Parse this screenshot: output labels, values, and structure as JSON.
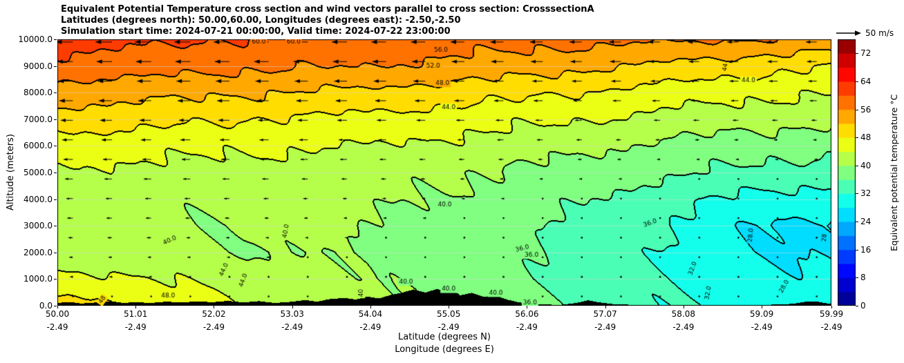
{
  "header": {
    "title_line1": "Equivalent Potential Temperature cross section and wind vectors parallel to cross section: CrosssectionA",
    "title_line2": "Latitudes (degrees north): 50.00,60.00, Longitudes (degrees east): -2.50,-2.50",
    "title_line3": "Simulation start time: 2024-07-21 00:00:00, Valid time: 2024-07-22 23:00:00"
  },
  "axes": {
    "x_label": "Latitude (degrees N)",
    "x_label_2": "Longitude (degrees E)",
    "y_label": "Altitude (meters)",
    "x_ticks": [
      {
        "lat": "50.00",
        "lon": "-2.49"
      },
      {
        "lat": "51.01",
        "lon": "-2.49"
      },
      {
        "lat": "52.02",
        "lon": "-2.49"
      },
      {
        "lat": "53.03",
        "lon": "-2.49"
      },
      {
        "lat": "54.04",
        "lon": "-2.49"
      },
      {
        "lat": "55.05",
        "lon": "-2.49"
      },
      {
        "lat": "56.06",
        "lon": "-2.49"
      },
      {
        "lat": "57.07",
        "lon": "-2.49"
      },
      {
        "lat": "58.08",
        "lon": "-2.49"
      },
      {
        "lat": "59.09",
        "lon": "-2.49"
      },
      {
        "lat": "59.99",
        "lon": "-2.49"
      }
    ],
    "y_ticks": [
      "0.0",
      "1000.0",
      "2000.0",
      "3000.0",
      "4000.0",
      "5000.0",
      "6000.0",
      "7000.0",
      "8000.0",
      "9000.0",
      "10000.0"
    ]
  },
  "colorbar": {
    "label": "Equivalent potential temperature °C",
    "ticks": [
      "0",
      "8",
      "16",
      "24",
      "32",
      "40",
      "48",
      "56",
      "64",
      "72"
    ],
    "vmin": 0,
    "vmax": 76,
    "band_step": 4,
    "colormap": "jet"
  },
  "wind_reference": {
    "label": "50 m/s",
    "speed_ms": 50
  },
  "chart_data": {
    "type": "heatmap",
    "title": "Equivalent Potential Temperature cross section and wind vectors parallel to cross section: CrosssectionA",
    "x": {
      "label": "Latitude (degrees N)",
      "values": [
        50,
        51,
        52,
        53,
        54,
        55,
        56,
        57,
        58,
        59,
        60
      ]
    },
    "y": {
      "label": "Altitude (meters)",
      "values": [
        0,
        1000,
        2000,
        3000,
        4000,
        5000,
        6000,
        7000,
        8000,
        9000,
        10000
      ]
    },
    "x_range": [
      50.0,
      59.99
    ],
    "y_range": [
      0,
      10000
    ],
    "field_name": "equivalent_potential_temperature_C",
    "vmin": 0,
    "vmax": 76,
    "grid": [
      [
        50,
        48,
        45,
        42,
        41,
        40,
        37,
        35,
        32,
        30,
        29
      ],
      [
        46,
        44,
        43,
        41,
        40,
        39,
        36,
        34,
        31.5,
        29,
        28.5
      ],
      [
        41,
        40.5,
        40.5,
        40,
        39.5,
        38,
        36.5,
        34,
        31,
        28,
        27.5
      ],
      [
        41,
        40.5,
        40,
        41,
        40,
        38.5,
        37,
        34.5,
        31.5,
        28,
        27
      ],
      [
        42,
        41.5,
        41,
        41.5,
        41,
        39.5,
        38,
        36,
        33,
        31,
        30
      ],
      [
        43.5,
        43,
        42.5,
        42,
        41.5,
        40.5,
        39.5,
        38,
        36.5,
        35,
        34
      ],
      [
        46,
        45.5,
        45,
        44.5,
        44,
        43,
        42,
        40.5,
        39,
        38,
        37
      ],
      [
        50,
        49.5,
        48.5,
        47.5,
        47,
        46,
        45,
        44,
        42.5,
        41.5,
        41
      ],
      [
        54,
        53.5,
        52.5,
        52,
        51,
        50,
        49,
        47.5,
        46,
        45,
        44
      ],
      [
        58.5,
        58,
        57,
        56.5,
        56,
        55,
        54,
        52.5,
        51,
        49.5,
        48
      ],
      [
        62,
        61,
        60,
        59.5,
        59,
        58,
        57.5,
        57,
        56.5,
        56,
        55
      ]
    ],
    "wind_parallel_ms": [
      [
        -2,
        -2,
        -1,
        -1,
        0,
        0,
        0,
        0,
        0,
        0,
        0
      ],
      [
        -6,
        -5,
        -4,
        -2,
        -1,
        0,
        0,
        0,
        0,
        0,
        1
      ],
      [
        -8,
        -8,
        -6,
        -4,
        -2,
        -1,
        0,
        0,
        0,
        0,
        1
      ],
      [
        -11,
        -11,
        -9,
        -7,
        -5,
        -3,
        -1,
        0,
        0,
        0,
        1
      ],
      [
        -14,
        -13,
        -12,
        -10,
        -8,
        -6,
        -4,
        -2,
        -1,
        -1,
        -1
      ],
      [
        -18,
        -17,
        -16,
        -14,
        -12,
        -10,
        -8,
        -6,
        -4,
        -3,
        -3
      ],
      [
        -22,
        -21,
        -20,
        -18,
        -16,
        -14,
        -12,
        -10,
        -8,
        -7,
        -6
      ],
      [
        -26,
        -25,
        -24,
        -22,
        -20,
        -18,
        -16,
        -14,
        -13,
        -12,
        -11
      ],
      [
        -30,
        -29,
        -28,
        -26,
        -25,
        -23,
        -21,
        -19,
        -18,
        -17,
        -16
      ],
      [
        -33,
        -32,
        -31,
        -30,
        -29,
        -27,
        -25,
        -23,
        -22,
        -21,
        -20
      ],
      [
        -36,
        -35,
        -34,
        -33,
        -32,
        -30,
        -28,
        -26,
        -25,
        -24,
        -23
      ]
    ],
    "contour_levels": [
      28,
      32,
      36,
      40,
      44,
      48,
      52,
      56,
      60
    ],
    "contour_labels": [
      {
        "text": "60.0",
        "lat": 52.6,
        "alt": 9900,
        "rot": 0
      },
      {
        "text": "60.0",
        "lat": 53.05,
        "alt": 9900,
        "rot": 0
      },
      {
        "text": "56.0",
        "lat": 54.95,
        "alt": 9600,
        "rot": 0
      },
      {
        "text": "52.0",
        "lat": 54.85,
        "alt": 8990,
        "rot": 0
      },
      {
        "text": "48.0",
        "lat": 54.97,
        "alt": 8350,
        "rot": 0
      },
      {
        "text": "44.0",
        "lat": 55.05,
        "alt": 7450,
        "rot": 0
      },
      {
        "text": "44",
        "lat": 58.62,
        "alt": 8950,
        "rot": -80
      },
      {
        "text": "44.0",
        "lat": 58.92,
        "alt": 8450,
        "rot": 0
      },
      {
        "text": "40.0",
        "lat": 55.0,
        "alt": 3800,
        "rot": 0
      },
      {
        "text": "40.0",
        "lat": 52.95,
        "alt": 2800,
        "rot": -80
      },
      {
        "text": "40.0",
        "lat": 51.45,
        "alt": 2450,
        "rot": -25
      },
      {
        "text": "36.0",
        "lat": 57.65,
        "alt": 3100,
        "rot": -20
      },
      {
        "text": "36.0",
        "lat": 56.0,
        "alt": 2150,
        "rot": -15
      },
      {
        "text": "36.0",
        "lat": 56.12,
        "alt": 1900,
        "rot": 0
      },
      {
        "text": "36.0",
        "lat": 56.1,
        "alt": 120,
        "rot": 0
      },
      {
        "text": "32.0",
        "lat": 58.2,
        "alt": 1400,
        "rot": -70
      },
      {
        "text": "32.0",
        "lat": 58.4,
        "alt": 480,
        "rot": -80
      },
      {
        "text": "28.0",
        "lat": 58.95,
        "alt": 2650,
        "rot": -85
      },
      {
        "text": "28",
        "lat": 59.9,
        "alt": 2550,
        "rot": -85
      },
      {
        "text": "28.0",
        "lat": 59.38,
        "alt": 720,
        "rot": -60
      },
      {
        "text": "48.0",
        "lat": 51.43,
        "alt": 380,
        "rot": 0
      },
      {
        "text": "48",
        "lat": 50.58,
        "alt": 220,
        "rot": -55
      },
      {
        "text": "44.0",
        "lat": 52.15,
        "alt": 1350,
        "rot": -65
      },
      {
        "text": "44.0",
        "lat": 52.4,
        "alt": 950,
        "rot": -70
      },
      {
        "text": "40.0",
        "lat": 54.5,
        "alt": 900,
        "rot": 0
      },
      {
        "text": "40",
        "lat": 53.92,
        "alt": 480,
        "rot": -90
      },
      {
        "text": "40.0",
        "lat": 55.05,
        "alt": 620,
        "rot": 0
      },
      {
        "text": "40.0",
        "lat": 55.66,
        "alt": 470,
        "rot": 0
      }
    ],
    "terrain_profile": [
      [
        50.0,
        90
      ],
      [
        50.15,
        130
      ],
      [
        50.3,
        70
      ],
      [
        50.5,
        110
      ],
      [
        50.7,
        150
      ],
      [
        50.85,
        90
      ],
      [
        51.0,
        120
      ],
      [
        51.2,
        90
      ],
      [
        51.4,
        140
      ],
      [
        51.6,
        110
      ],
      [
        51.8,
        150
      ],
      [
        52.0,
        120
      ],
      [
        52.2,
        170
      ],
      [
        52.4,
        110
      ],
      [
        52.6,
        160
      ],
      [
        52.8,
        90
      ],
      [
        53.0,
        130
      ],
      [
        53.2,
        200
      ],
      [
        53.35,
        140
      ],
      [
        53.5,
        230
      ],
      [
        53.7,
        280
      ],
      [
        53.85,
        220
      ],
      [
        54.0,
        330
      ],
      [
        54.15,
        260
      ],
      [
        54.3,
        390
      ],
      [
        54.45,
        480
      ],
      [
        54.6,
        600
      ],
      [
        54.75,
        480
      ],
      [
        54.9,
        620
      ],
      [
        55.0,
        520
      ],
      [
        55.1,
        580
      ],
      [
        55.2,
        380
      ],
      [
        55.35,
        470
      ],
      [
        55.5,
        320
      ],
      [
        55.65,
        380
      ],
      [
        55.8,
        220
      ],
      [
        55.95,
        120
      ],
      [
        56.1,
        60
      ],
      [
        56.3,
        30
      ],
      [
        56.5,
        20
      ],
      [
        56.7,
        90
      ],
      [
        56.85,
        190
      ],
      [
        57.0,
        110
      ],
      [
        57.2,
        40
      ],
      [
        57.5,
        15
      ],
      [
        58.0,
        10
      ],
      [
        58.5,
        10
      ],
      [
        59.0,
        15
      ],
      [
        59.3,
        30
      ],
      [
        59.5,
        60
      ],
      [
        59.65,
        130
      ],
      [
        59.8,
        150
      ],
      [
        59.9,
        90
      ],
      [
        59.99,
        60
      ]
    ]
  }
}
